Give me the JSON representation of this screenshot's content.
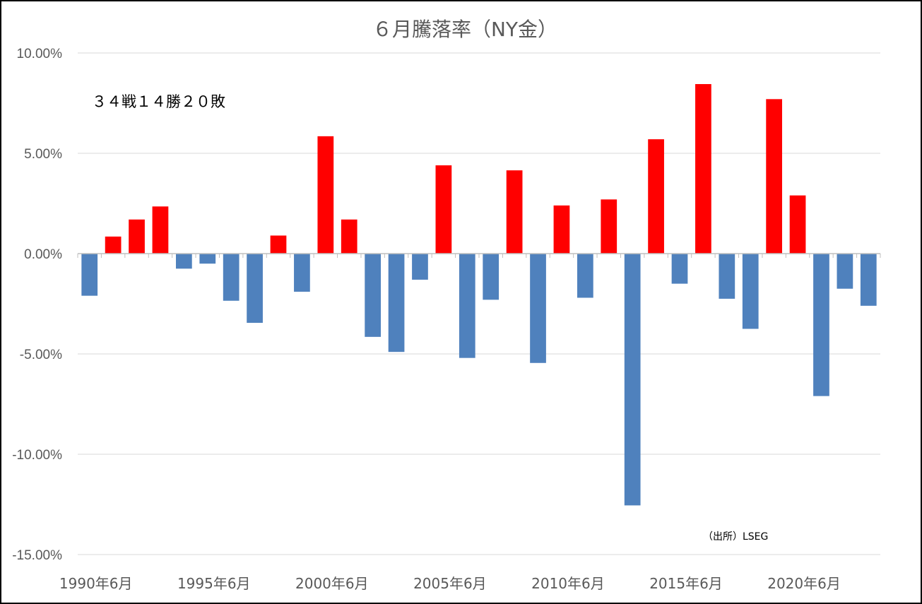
{
  "chart_data": {
    "type": "bar",
    "title": "６月騰落率（NY金）",
    "annotation": "３４戦１４勝２０敗",
    "source": "（出所）LSEG",
    "ylim": [
      -15,
      10
    ],
    "y_ticks": [
      10,
      5,
      0,
      -5,
      -10,
      -15
    ],
    "y_tick_labels": [
      "10.00%",
      "5.00%",
      "0.00%",
      "-5.00%",
      "-10.00%",
      "-15.00%"
    ],
    "x_tick_labels": [
      "1990年6月",
      "1995年6月",
      "2000年6月",
      "2005年6月",
      "2010年6月",
      "2015年6月",
      "2020年6月"
    ],
    "x_tick_indices": [
      0,
      5,
      10,
      15,
      20,
      25,
      30
    ],
    "grid": true,
    "legend": "none",
    "colors": {
      "gain": "#FF0000",
      "loss": "#4F81BD",
      "grid": "#D9D9D9",
      "axis": "#BFBFBF"
    },
    "categories": [
      "1990年6月",
      "1991年6月",
      "1992年6月",
      "1993年6月",
      "1994年6月",
      "1995年6月",
      "1996年6月",
      "1997年6月",
      "1998年6月",
      "1999年6月",
      "2000年6月",
      "2001年6月",
      "2002年6月",
      "2003年6月",
      "2004年6月",
      "2005年6月",
      "2006年6月",
      "2007年6月",
      "2008年6月",
      "2009年6月",
      "2010年6月",
      "2011年6月",
      "2012年6月",
      "2013年6月",
      "2014年6月",
      "2015年6月",
      "2016年6月",
      "2017年6月",
      "2018年6月",
      "2019年6月",
      "2020年6月",
      "2021年6月",
      "2022年6月",
      "2023年6月"
    ],
    "values": [
      -2.1,
      0.85,
      1.7,
      2.35,
      -0.75,
      -0.5,
      -2.35,
      -3.45,
      0.9,
      -1.9,
      5.85,
      1.7,
      -4.15,
      -4.9,
      -1.3,
      4.4,
      -5.2,
      -2.3,
      4.15,
      -5.45,
      2.4,
      -2.2,
      2.7,
      -12.55,
      5.7,
      -1.5,
      8.45,
      -2.25,
      -3.75,
      7.7,
      2.9,
      -7.1,
      -1.75,
      -2.6
    ]
  }
}
